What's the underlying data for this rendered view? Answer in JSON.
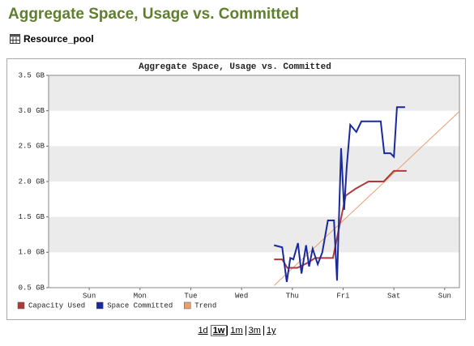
{
  "page": {
    "heading": "Aggregate Space, Usage vs. Committed",
    "resource": "Resource_pool",
    "range_links": [
      "1d",
      "1w",
      "1m",
      "3m",
      "1y"
    ],
    "selected_range": 1
  },
  "chart_data": {
    "type": "line",
    "title": "Aggregate Space, Usage vs. Committed",
    "xlim": [
      -0.8,
      7.29
    ],
    "xticks": [
      {
        "value": 0,
        "label": "Sun"
      },
      {
        "value": 1,
        "label": "Mon"
      },
      {
        "value": 2,
        "label": "Tue"
      },
      {
        "value": 3,
        "label": "Wed"
      },
      {
        "value": 4,
        "label": "Thu"
      },
      {
        "value": 5,
        "label": "Fri"
      },
      {
        "value": 6,
        "label": "Sat"
      },
      {
        "value": 7,
        "label": "Sun"
      }
    ],
    "ylim": [
      0.5,
      3.5
    ],
    "yticks": [
      {
        "value": 0.5,
        "label": "0.5 GB"
      },
      {
        "value": 1,
        "label": "1.0 GB"
      },
      {
        "value": 1.5,
        "label": "1.5 GB"
      },
      {
        "value": 2,
        "label": "2.0 GB"
      },
      {
        "value": 2.5,
        "label": "2.5 GB"
      },
      {
        "value": 3,
        "label": "3.0 GB"
      },
      {
        "value": 3.5,
        "label": "3.5 GB"
      }
    ],
    "grid_bands": true,
    "legend": "bottom-left",
    "series": [
      {
        "name": "Capacity Used",
        "color": "#b03a3a",
        "x": [
          3.64,
          3.8,
          3.9,
          4.1,
          4.3,
          4.45,
          4.8,
          4.95,
          5.05,
          5.25,
          5.5,
          5.8,
          6.0,
          6.25
        ],
        "values": [
          0.9,
          0.9,
          0.78,
          0.78,
          0.85,
          0.92,
          0.92,
          1.45,
          1.8,
          1.9,
          2.0,
          2.0,
          2.15,
          2.15
        ]
      },
      {
        "name": "Space Committed",
        "color": "#1a2a9a",
        "x": [
          3.64,
          3.8,
          3.89,
          3.96,
          4.02,
          4.11,
          4.18,
          4.27,
          4.33,
          4.4,
          4.5,
          4.59,
          4.7,
          4.82,
          4.88,
          4.96,
          5.02,
          5.07,
          5.14,
          5.26,
          5.36,
          5.74,
          5.81,
          5.93,
          6.0,
          6.06,
          6.22
        ],
        "values": [
          1.1,
          1.07,
          0.58,
          0.92,
          0.9,
          1.13,
          0.7,
          1.1,
          0.8,
          1.05,
          0.83,
          1.0,
          1.45,
          1.45,
          0.6,
          2.47,
          1.6,
          2.2,
          2.8,
          2.7,
          2.85,
          2.85,
          2.4,
          2.4,
          2.35,
          3.05,
          3.05
        ]
      },
      {
        "name": "Trend",
        "color": "#e8a070",
        "x": [
          3.64,
          7.29
        ],
        "values": [
          0.53,
          2.99
        ]
      }
    ]
  }
}
